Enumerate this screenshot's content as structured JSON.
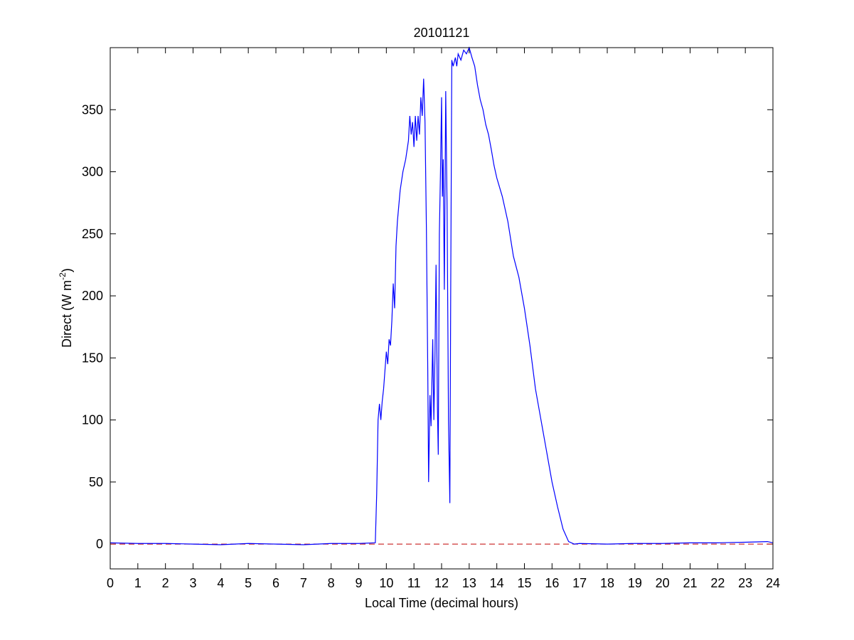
{
  "chart_data": {
    "type": "line",
    "title": "20101121",
    "xlabel": "Local Time (decimal hours)",
    "ylabel_parts": [
      "Direct (W m",
      "-2",
      ")"
    ],
    "x": [
      0,
      1,
      2,
      3,
      4,
      5,
      6,
      7,
      8,
      9,
      9.6,
      9.65,
      9.7,
      9.75,
      9.8,
      9.85,
      9.9,
      9.95,
      10.0,
      10.05,
      10.1,
      10.15,
      10.2,
      10.25,
      10.3,
      10.35,
      10.4,
      10.5,
      10.6,
      10.7,
      10.8,
      10.85,
      10.9,
      10.95,
      11.0,
      11.05,
      11.1,
      11.15,
      11.2,
      11.25,
      11.3,
      11.35,
      11.4,
      11.45,
      11.5,
      11.53,
      11.58,
      11.62,
      11.68,
      11.72,
      11.76,
      11.8,
      11.85,
      11.88,
      11.92,
      11.96,
      12.0,
      12.03,
      12.06,
      12.1,
      12.15,
      12.2,
      12.25,
      12.3,
      12.33,
      12.37,
      12.42,
      12.5,
      12.55,
      12.6,
      12.7,
      12.8,
      12.9,
      13.0,
      13.1,
      13.2,
      13.3,
      13.4,
      13.5,
      13.6,
      13.7,
      13.8,
      13.9,
      14.0,
      14.2,
      14.4,
      14.6,
      14.8,
      15.0,
      15.2,
      15.4,
      15.6,
      15.8,
      16.0,
      16.2,
      16.4,
      16.6,
      16.8,
      17,
      18,
      19,
      20,
      21,
      22,
      23,
      23.8,
      24
    ],
    "series": [
      {
        "color": "#0000ff",
        "values": [
          1,
          0.5,
          0.5,
          0,
          -0.5,
          0.5,
          0,
          -0.5,
          0.5,
          0.5,
          1,
          40,
          100,
          113,
          100,
          115,
          125,
          140,
          155,
          145,
          165,
          160,
          180,
          210,
          190,
          240,
          260,
          285,
          300,
          310,
          325,
          345,
          330,
          340,
          320,
          345,
          325,
          345,
          330,
          360,
          345,
          375,
          340,
          255,
          140,
          50,
          120,
          95,
          165,
          100,
          150,
          225,
          110,
          72,
          250,
          300,
          360,
          280,
          310,
          205,
          365,
          270,
          100,
          33,
          200,
          390,
          385,
          392,
          385,
          395,
          390,
          398,
          395,
          400,
          392,
          385,
          370,
          358,
          350,
          338,
          330,
          318,
          305,
          295,
          280,
          260,
          232,
          215,
          190,
          160,
          125,
          100,
          75,
          50,
          30,
          12,
          2,
          0,
          0.5,
          0,
          0.5,
          0.5,
          1,
          1,
          1.5,
          2,
          1
        ]
      }
    ],
    "reference_line": {
      "value": 0,
      "color": "#c00000",
      "dashed": true
    },
    "xlim": [
      0,
      24
    ],
    "xticks": [
      0,
      1,
      2,
      3,
      4,
      5,
      6,
      7,
      8,
      9,
      10,
      11,
      12,
      13,
      14,
      15,
      16,
      17,
      18,
      19,
      20,
      21,
      22,
      23,
      24
    ],
    "ylim": [
      -20,
      400
    ],
    "yticks": [
      0,
      50,
      100,
      150,
      200,
      250,
      300,
      350
    ],
    "grid": false
  }
}
